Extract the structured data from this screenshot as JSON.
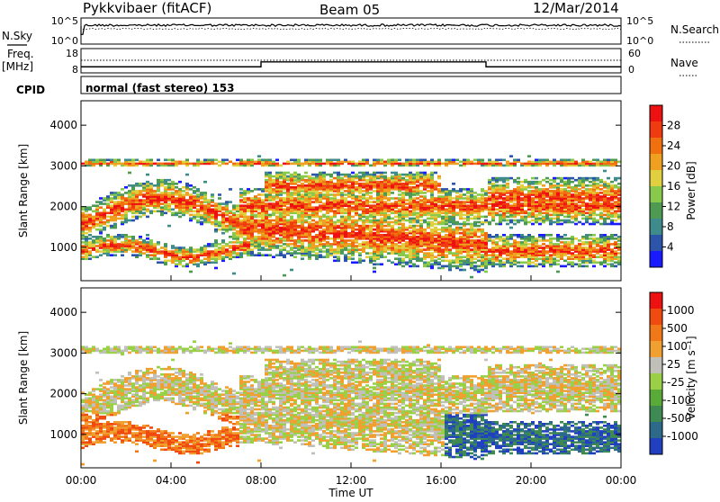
{
  "header": {
    "station": "Pykkvibaer (fitACF)",
    "beam": "Beam 05",
    "date": "12/Mar/2014"
  },
  "left_labels": {
    "nsky": "N.Sky",
    "freq": "Freq.",
    "freq_unit": "[MHz]",
    "cpid": "CPID"
  },
  "right_labels": {
    "nsearch": "N.Search",
    "nave": "Nave"
  },
  "cpid_text": "normal (fast stereo) 153",
  "chart_data": [
    {
      "type": "line",
      "name": "noise",
      "yticks_left": [
        "10^5",
        "10^0"
      ],
      "yticks_right": [
        "10^5",
        "10^0"
      ]
    },
    {
      "type": "line",
      "name": "frequency",
      "yticks_left": [
        "18",
        "8"
      ],
      "yticks_right": [
        "60",
        "0"
      ],
      "freq_steps": [
        {
          "t0": 0,
          "t1": 8,
          "value": 10.5
        },
        {
          "t0": 8,
          "t1": 18,
          "value": 12.5
        },
        {
          "t0": 18,
          "t1": 24,
          "value": 10.5
        }
      ]
    },
    {
      "type": "heatmap",
      "parameter": "power",
      "ylabel": "Slant Range [km]",
      "yticks": [
        1000,
        2000,
        3000,
        4000
      ],
      "ylim": [
        180,
        4600
      ],
      "colorbar_label": "Power [dB]",
      "colorbar_ticks": [
        "28",
        "24",
        "20",
        "16",
        "12",
        "8",
        "4"
      ],
      "colors": [
        "#1a1aff",
        "#2c54a8",
        "#3f8a8a",
        "#4e9a52",
        "#88c84a",
        "#e0d040",
        "#f0a020",
        "#f07010",
        "#f03a10",
        "#ee1111"
      ]
    },
    {
      "type": "heatmap",
      "parameter": "velocity",
      "ylabel": "Slant Range [km]",
      "yticks": [
        1000,
        2000,
        3000,
        4000
      ],
      "ylim": [
        180,
        4600
      ],
      "xlabel": "Time UT",
      "xticks": [
        "00:00",
        "04:00",
        "08:00",
        "12:00",
        "16:00",
        "20:00",
        "00:00"
      ],
      "colorbar_label": "Velocity [m s⁻¹]",
      "colorbar_ticks": [
        "1000",
        "500",
        "100",
        "25",
        "-25",
        "-100",
        "-500",
        "-1000"
      ],
      "colors": [
        "#2040c0",
        "#2d6a8a",
        "#3f8a52",
        "#5aaa3a",
        "#9ad048",
        "#c0c0b8",
        "#f0a030",
        "#f07818",
        "#f04a10",
        "#ee1111"
      ]
    }
  ]
}
